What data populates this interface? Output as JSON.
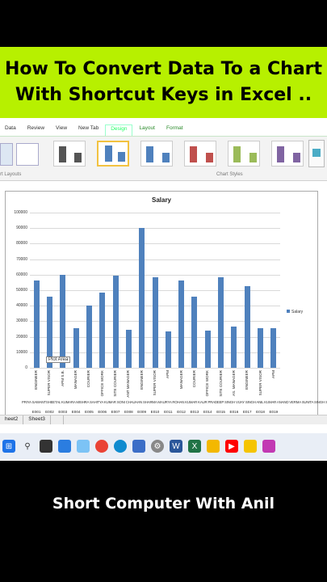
{
  "banner": {
    "line1": "How To Convert Data To a Chart",
    "line2": "With Shortcut Keys in Excel .."
  },
  "ribbon": {
    "tabs": [
      "Data",
      "Review",
      "View",
      "New Tab",
      "Design",
      "Layout",
      "Format"
    ],
    "active_tab": "Design",
    "group_left": "rt Layouts",
    "group_right": "Chart Styles"
  },
  "sheet_tabs": [
    "heet2",
    "Sheet3"
  ],
  "tooltip": "Plot Area",
  "footer": "Short Computer With Anil",
  "colors": {
    "banner": "#b7f000",
    "bar": "#4f81bd"
  },
  "chart_data": {
    "type": "bar",
    "title": "Salary",
    "legend": [
      "Salary"
    ],
    "legend_position": "right",
    "ylim": [
      0,
      100000
    ],
    "yticks": [
      "0",
      "10000",
      "20000",
      "30000",
      "40000",
      "50000",
      "60000",
      "70000",
      "80000",
      "90000",
      "100000"
    ],
    "grid": true,
    "categories": [
      "ENGINEER",
      "SUPER VISOR",
      "APM S.B.",
      "MANAGER",
      "COURIER",
      "OFFICE WORK",
      "SITE COURIER",
      "ANT MANAGER",
      "ENGINEER",
      "SUPER VISOR",
      "APM",
      "MANAGER",
      "COURIER",
      "OFFICE WORK",
      "SITE COURIER",
      "AS. MANAGER",
      "ENGINEER",
      "SUPER VISOR",
      "APM"
    ],
    "ids": [
      "E001",
      "E002",
      "E003",
      "E004",
      "E005",
      "E006",
      "E007",
      "E008",
      "E009",
      "E010",
      "E011",
      "E012",
      "E013",
      "E014",
      "E015",
      "E016",
      "E017",
      "E018",
      "E019"
    ],
    "names_row": "PRIYA SAWANTSHEETAL KUMARA MISHRA SAHITYA KUMAR SONI CHAUHAN SHARMA MAURYA ROHAN KUMAR KAUR PRADEEP SINGH VIJAY SINGH ANIL KUMAR ANAND VERMA SUNITA SINGH SHIV PATHAK",
    "values": [
      56000,
      46000,
      60000,
      25500,
      40000,
      48500,
      59500,
      24500,
      90000,
      58500,
      23500,
      56000,
      46000,
      24000,
      58500,
      26500,
      52500,
      25500,
      25500
    ]
  }
}
